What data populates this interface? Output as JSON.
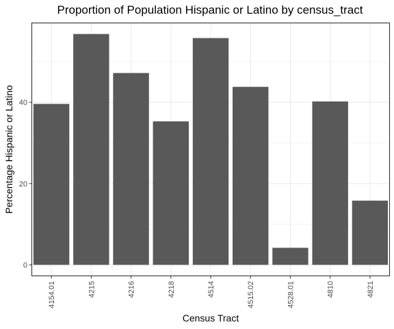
{
  "chart_data": {
    "type": "bar",
    "title": "Proportion of Population Hispanic or Latino by census_tract",
    "xlabel": "Census Tract",
    "ylabel": "Percentage Hispanic or Latino",
    "categories": [
      "4154.01",
      "4215",
      "4216",
      "4218",
      "4514",
      "4515.02",
      "4528.01",
      "4810",
      "4821"
    ],
    "values": [
      39.6,
      56.8,
      47.2,
      35.3,
      55.8,
      43.8,
      4.2,
      40.2,
      15.8
    ],
    "ylim": [
      -2.8,
      59.6
    ],
    "yticks": [
      0,
      20,
      40
    ],
    "grid": true,
    "bar_color": "#595959"
  }
}
